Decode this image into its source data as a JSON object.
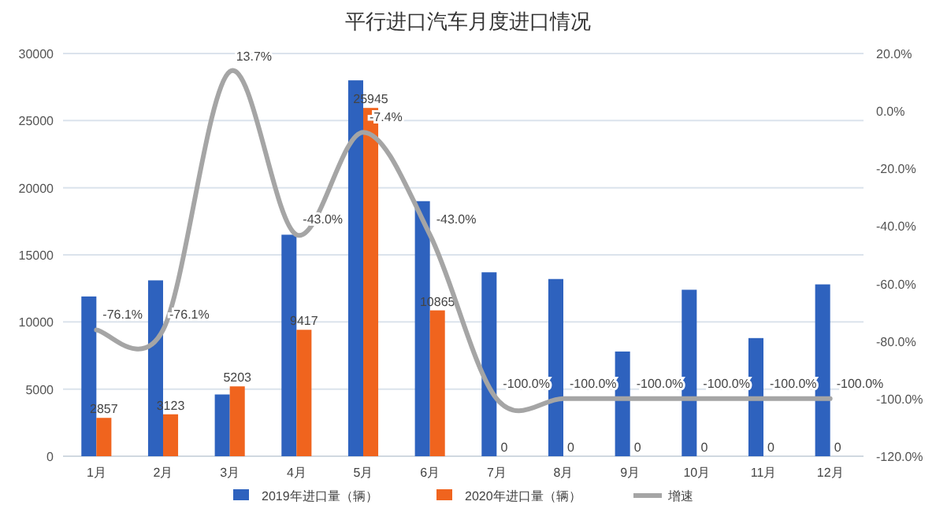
{
  "chart_data": {
    "type": "bar",
    "title": "平行进口汽车月度进口情况",
    "categories": [
      "1月",
      "2月",
      "3月",
      "4月",
      "5月",
      "6月",
      "7月",
      "8月",
      "9月",
      "10月",
      "11月",
      "12月"
    ],
    "series": [
      {
        "name": "2019年进口量（辆）",
        "color": "#2e62be",
        "values": [
          11900,
          13100,
          4600,
          16500,
          28000,
          19000,
          13700,
          13200,
          7800,
          12400,
          8800,
          12800
        ]
      },
      {
        "name": "2020年进口量（辆）",
        "color": "#f0641e",
        "values": [
          2857,
          3123,
          5203,
          9417,
          25945,
          10865,
          0,
          0,
          0,
          0,
          0,
          0
        ],
        "value_labels": [
          "2857",
          "3123",
          "5203",
          "9417",
          "25945",
          "10865",
          "0",
          "0",
          "0",
          "0",
          "0",
          "0"
        ]
      },
      {
        "name": "增速",
        "type": "line",
        "axis": "y2",
        "color": "#a5a5a5",
        "values": [
          -76.1,
          -76.1,
          13.7,
          -43.0,
          -7.4,
          -43.0,
          -100,
          -100,
          -100,
          -100,
          -100,
          -100
        ],
        "value_labels": [
          "-76.1%",
          "-76.1%",
          "13.7%",
          "-43.0%",
          "-7.4%",
          "-43.0%",
          "-100.0%",
          "-100.0%",
          "-100.0%",
          "-100.0%",
          "-100.0%",
          "-100.0%"
        ]
      }
    ],
    "ylim": [
      0,
      30000
    ],
    "yticks": [
      0,
      5000,
      10000,
      15000,
      20000,
      25000,
      30000
    ],
    "y2lim": [
      -120,
      20
    ],
    "y2ticks": [
      {
        "value": -120,
        "label": "-120.0%"
      },
      {
        "value": -100,
        "label": "-100.0%"
      },
      {
        "value": -80,
        "label": "-80.0%"
      },
      {
        "value": -60,
        "label": "-60.0%"
      },
      {
        "value": -40,
        "label": "-40.0%"
      },
      {
        "value": -20,
        "label": "-20.0%"
      },
      {
        "value": 0,
        "label": "0.0%"
      },
      {
        "value": 20,
        "label": "20.0%"
      }
    ],
    "grid": "y",
    "legend": "bottom"
  }
}
